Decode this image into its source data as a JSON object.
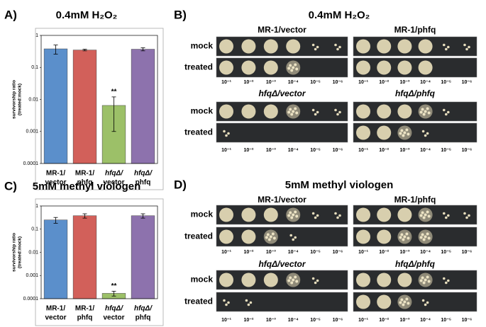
{
  "chart_data": [
    {
      "type": "bar",
      "panel": "A)",
      "title": "0.4mM H₂O₂",
      "y_label": [
        "survivorship ratio",
        "(treated:mock)"
      ],
      "categories": [
        [
          "MR-1/",
          "vector"
        ],
        [
          "MR-1/",
          "phfq"
        ],
        [
          "hfqΔ/",
          "vector"
        ],
        [
          "hfqΔ/",
          "phfq"
        ]
      ],
      "values": [
        0.38,
        0.35,
        0.0065,
        0.37
      ],
      "errors": [
        0.12,
        0.02,
        0.0055,
        0.04
      ],
      "significance": [
        null,
        null,
        "**",
        null
      ],
      "colors": [
        "#5b8fcb",
        "#d2605a",
        "#9cc068",
        "#8d72ad"
      ],
      "log_scale": true,
      "ylim": [
        0.0001,
        1
      ],
      "yticks": [
        1,
        0.1,
        0.01,
        0.001,
        0.0001
      ]
    },
    {
      "type": "bar",
      "panel": "C)",
      "title": "5mM methyl viologen",
      "y_label": [
        "survivorship ratio",
        "(treated:mock)"
      ],
      "categories": [
        [
          "MR-1/",
          "vector"
        ],
        [
          "MR-1/",
          "phfq"
        ],
        [
          "hfqΔ/",
          "vector"
        ],
        [
          "hfqΔ/",
          "phfq"
        ]
      ],
      "values": [
        0.25,
        0.38,
        0.00017,
        0.38
      ],
      "errors": [
        0.07,
        0.08,
        4e-05,
        0.08
      ],
      "significance": [
        null,
        null,
        "**",
        null
      ],
      "colors": [
        "#5b8fcb",
        "#d2605a",
        "#9cc068",
        "#8d72ad"
      ],
      "log_scale": true,
      "ylim": [
        0.0001,
        1
      ],
      "yticks": [
        1,
        0.1,
        0.01,
        0.001,
        0.0001
      ]
    }
  ],
  "spot_assays": [
    {
      "panel": "B)",
      "title": "0.4mM H₂O₂",
      "strains": [
        "MR-1/vector",
        "MR-1/phfq",
        "hfqΔ/vector",
        "hfqΔ/phfq"
      ],
      "rows": [
        "mock",
        "treated"
      ],
      "dilutions": [
        "10⁻¹",
        "10⁻²",
        "10⁻³",
        "10⁻⁴",
        "10⁻⁵",
        "10⁻⁶"
      ]
    },
    {
      "panel": "D)",
      "title": "5mM methyl viologen",
      "strains": [
        "MR-1/vector",
        "MR-1/phfq",
        "hfqΔ/vector",
        "hfqΔ/phfq"
      ],
      "rows": [
        "mock",
        "treated"
      ],
      "dilutions": [
        "10⁻¹",
        "10⁻²",
        "10⁻³",
        "10⁻⁴",
        "10⁻⁵",
        "10⁻⁶"
      ]
    }
  ]
}
